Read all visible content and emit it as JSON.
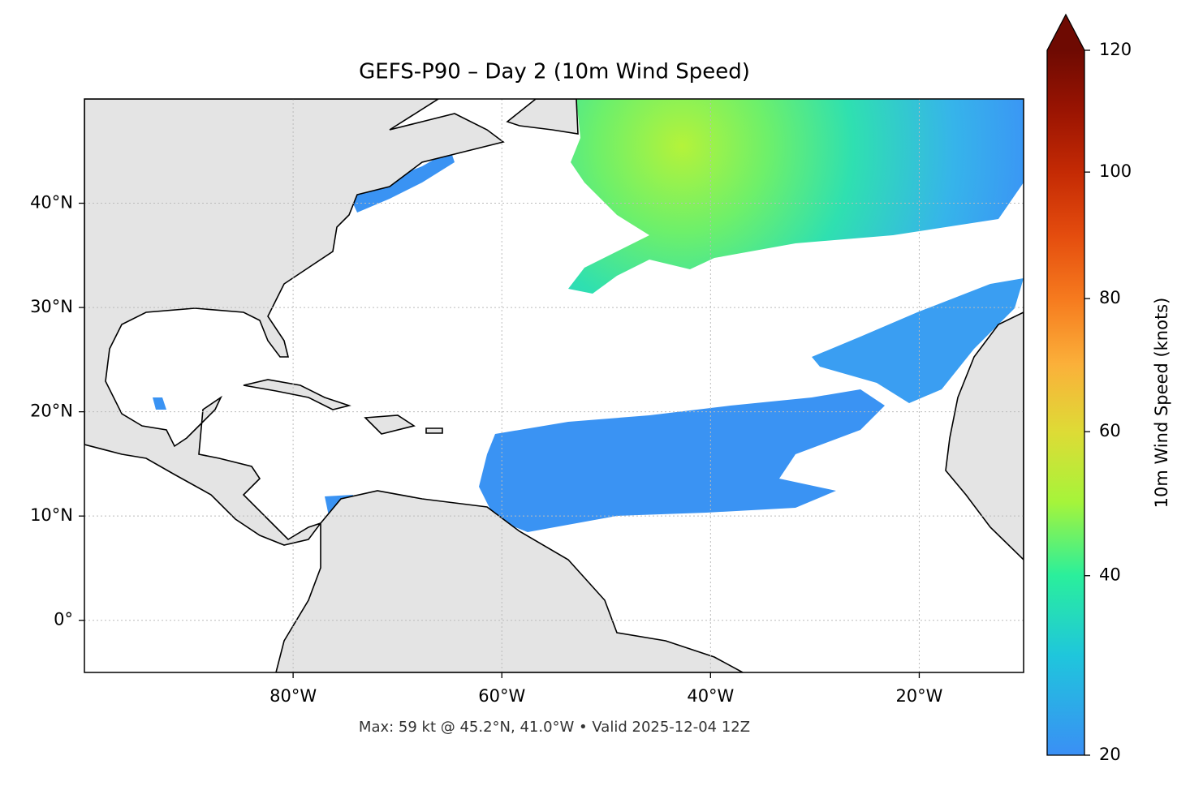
{
  "chart_data": {
    "type": "map",
    "title": "GEFS-P90 – Day 2 (10m Wind Speed)",
    "annotation": "Max: 59 kt @ 45.2°N, 41.0°W • Valid 2025-12-04 12Z",
    "xlim": [
      -100,
      -10
    ],
    "ylim": [
      -5,
      50
    ],
    "xticks": [
      {
        "value": -80,
        "label": "80°W"
      },
      {
        "value": -60,
        "label": "60°W"
      },
      {
        "value": -40,
        "label": "40°W"
      },
      {
        "value": -20,
        "label": "20°W"
      }
    ],
    "yticks": [
      {
        "value": 0,
        "label": "0°"
      },
      {
        "value": 10,
        "label": "10°N"
      },
      {
        "value": 20,
        "label": "20°N"
      },
      {
        "value": 30,
        "label": "30°N"
      },
      {
        "value": 40,
        "label": "40°N"
      }
    ],
    "grid": true,
    "colorbar": {
      "label": "10m Wind Speed (knots)",
      "lim": [
        20,
        120
      ],
      "ticks": [
        20,
        40,
        60,
        80,
        100,
        120
      ],
      "gamma": 0.85,
      "extend": "max",
      "colors": [
        "#3a8ff5",
        "#1fc6dc",
        "#2aef9c",
        "#a6f43a",
        "#dedb36",
        "#fbb03a",
        "#f67a1e",
        "#e44c0e",
        "#c42a04",
        "#9a1402",
        "#6e0a02"
      ]
    }
  }
}
